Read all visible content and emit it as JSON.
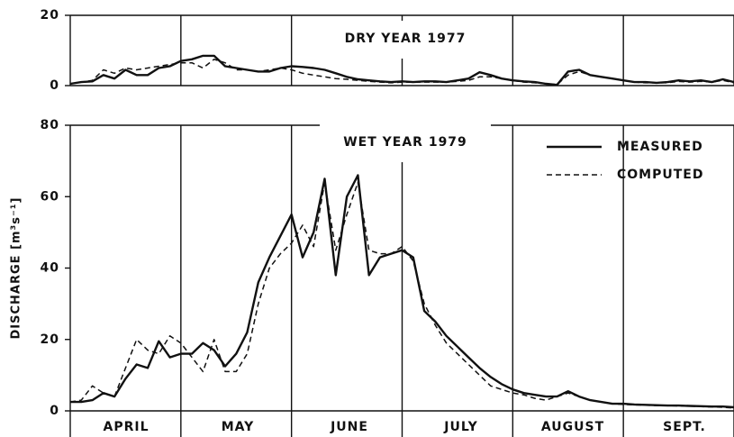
{
  "chart_data": [
    {
      "type": "line",
      "title": "DRY YEAR 1977",
      "x": [
        0,
        0.1,
        0.2,
        0.3,
        0.4,
        0.5,
        0.6,
        0.7,
        0.8,
        0.9,
        1,
        1.1,
        1.2,
        1.3,
        1.4,
        1.5,
        1.6,
        1.7,
        1.8,
        1.9,
        2,
        2.1,
        2.2,
        2.3,
        2.4,
        2.5,
        2.6,
        2.7,
        2.8,
        2.9,
        3,
        3.1,
        3.2,
        3.3,
        3.4,
        3.5,
        3.6,
        3.7,
        3.8,
        3.9,
        4,
        4.1,
        4.2,
        4.3,
        4.4,
        4.5,
        4.6,
        4.7,
        4.8,
        4.9,
        5,
        5.1,
        5.2,
        5.3,
        5.4,
        5.5,
        5.6,
        5.7,
        5.8,
        5.9,
        6
      ],
      "xlim": [
        0,
        6
      ],
      "xticks": [
        0,
        1,
        2,
        3,
        4,
        5,
        6
      ],
      "ylim": [
        0,
        20
      ],
      "yticks": [
        0,
        20
      ],
      "grid": true,
      "series": [
        {
          "color": "#111111",
          "linestyle": "solid",
          "values": [
            0.5,
            1,
            1.2,
            3,
            2,
            4.5,
            3,
            3,
            5,
            5.5,
            7,
            7.5,
            8.5,
            8.5,
            5.5,
            5,
            4.5,
            4,
            4,
            5,
            5.5,
            5.3,
            5,
            4.5,
            3.5,
            2.5,
            1.8,
            1.5,
            1.2,
            1,
            1.2,
            1,
            1.2,
            1.2,
            1,
            1.5,
            2,
            3.8,
            3,
            2,
            1.5,
            1.2,
            1,
            0.5,
            0.2,
            4,
            4.5,
            3,
            2.5,
            2,
            1.5,
            1,
            1,
            0.8,
            1,
            1.5,
            1.2,
            1.5,
            1,
            1.8,
            1
          ]
        },
        {
          "color": "#111111",
          "linestyle": "dashed",
          "values": [
            0.5,
            1,
            1.5,
            4.5,
            3.5,
            5,
            4.5,
            5,
            5.5,
            6,
            6.5,
            6.5,
            5,
            7.5,
            6.5,
            4.5,
            4.5,
            4,
            4.5,
            5,
            4.5,
            3.5,
            3,
            2.5,
            2,
            1.8,
            1.5,
            1.2,
            1,
            0.8,
            1,
            1,
            1,
            1,
            1,
            1.2,
            1.5,
            2.5,
            2.5,
            2,
            1.5,
            1,
            0.8,
            0.5,
            0.3,
            3,
            4,
            3,
            2.5,
            2,
            1.5,
            1,
            0.8,
            0.8,
            0.8,
            1.2,
            1,
            1.2,
            1,
            1.5,
            0.8
          ]
        }
      ]
    },
    {
      "type": "line",
      "title": "WET YEAR 1979",
      "y_label": "DISCHARGE [m³s⁻¹]",
      "categories": [
        "APRIL",
        "MAY",
        "JUNE",
        "JULY",
        "AUGUST",
        "SEPT."
      ],
      "x": [
        0,
        0.1,
        0.2,
        0.3,
        0.4,
        0.5,
        0.6,
        0.7,
        0.8,
        0.9,
        1,
        1.1,
        1.2,
        1.3,
        1.4,
        1.5,
        1.6,
        1.7,
        1.8,
        1.9,
        2,
        2.1,
        2.2,
        2.3,
        2.4,
        2.5,
        2.6,
        2.7,
        2.8,
        2.9,
        3,
        3.1,
        3.2,
        3.3,
        3.4,
        3.5,
        3.6,
        3.7,
        3.8,
        3.9,
        4,
        4.1,
        4.2,
        4.3,
        4.4,
        4.5,
        4.6,
        4.7,
        4.8,
        4.9,
        5,
        5.1,
        5.2,
        5.3,
        5.4,
        5.5,
        5.6,
        5.7,
        5.8,
        5.9,
        6
      ],
      "xlim": [
        0,
        6
      ],
      "xticks": [
        0,
        1,
        2,
        3,
        4,
        5,
        6
      ],
      "ylim": [
        0,
        80
      ],
      "yticks": [
        0,
        20,
        40,
        60,
        80
      ],
      "grid": true,
      "legend": "upper right",
      "series": [
        {
          "name": "MEASURED",
          "color": "#111111",
          "linestyle": "solid",
          "values": [
            2.5,
            2.5,
            3,
            5,
            4,
            9,
            13,
            12,
            19.5,
            15,
            16,
            16,
            19,
            17,
            12.5,
            16,
            22,
            36,
            43,
            49,
            55,
            43,
            50,
            65,
            38,
            60,
            66,
            38,
            43,
            44,
            45,
            43,
            28,
            25,
            21,
            18,
            15,
            12,
            9.5,
            7.5,
            6,
            5,
            4.5,
            4,
            4,
            5.5,
            4,
            3,
            2.5,
            2,
            2,
            1.8,
            1.7,
            1.6,
            1.5,
            1.5,
            1.4,
            1.3,
            1.2,
            1.2,
            1
          ]
        },
        {
          "name": "COMPUTED",
          "color": "#111111",
          "linestyle": "dashed",
          "values": [
            2.5,
            3,
            7,
            5,
            4,
            12,
            20,
            17,
            16,
            21,
            19,
            15,
            11,
            20,
            11,
            11,
            16,
            30,
            40,
            44,
            47,
            52,
            46,
            64,
            45,
            55,
            64,
            45,
            44,
            44,
            46,
            42,
            30,
            24,
            19,
            16,
            13,
            10,
            7,
            6,
            5,
            4.5,
            3.5,
            3,
            4,
            5,
            4,
            3,
            2.5,
            2,
            1.8,
            1.7,
            1.6,
            1.5,
            1.5,
            1.4,
            1.3,
            1.2,
            1.1,
            1,
            0.8
          ]
        }
      ]
    }
  ]
}
